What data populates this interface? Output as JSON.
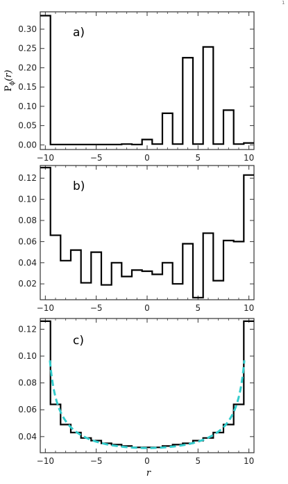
{
  "page_number": "1",
  "chart_data": [
    {
      "type": "step",
      "panel_label": "a)",
      "ylabel": "P",
      "ylabel_sub": "ϕ",
      "ylabel_arg": "(r)",
      "xlabel": "",
      "xlim": [
        -10.5,
        10.5
      ],
      "ylim": [
        -0.012,
        0.345
      ],
      "xticks": [
        -10,
        -5,
        0,
        5,
        10
      ],
      "xtick_labels": [
        "−10",
        "−5",
        "0",
        "5",
        "10"
      ],
      "yticks": [
        0.0,
        0.05,
        0.1,
        0.15,
        0.2,
        0.25,
        0.3
      ],
      "ytick_labels": [
        "0.00",
        "0.05",
        "0.10",
        "0.15",
        "0.20",
        "0.25",
        "0.30"
      ],
      "x": [
        -10,
        -9,
        -8,
        -7,
        -6,
        -5,
        -4,
        -3,
        -2,
        -1,
        0,
        1,
        2,
        3,
        4,
        5,
        6,
        7,
        8,
        9,
        10
      ],
      "values": [
        0.335,
        0.001,
        0.001,
        0.001,
        0.001,
        0.001,
        0.001,
        0.001,
        0.002,
        0.001,
        0.014,
        0.002,
        0.082,
        0.002,
        0.226,
        0.002,
        0.254,
        0.002,
        0.09,
        0.002,
        0.005
      ],
      "series_color": "#000000"
    },
    {
      "type": "step",
      "panel_label": "b)",
      "xlabel": "",
      "xlim": [
        -10.5,
        10.5
      ],
      "ylim": [
        0.005,
        0.132
      ],
      "xticks": [
        -10,
        -5,
        0,
        5,
        10
      ],
      "xtick_labels": [
        "−10",
        "−5",
        "0",
        "5",
        "10"
      ],
      "yticks": [
        0.02,
        0.04,
        0.06,
        0.08,
        0.1,
        0.12
      ],
      "ytick_labels": [
        "0.02",
        "0.04",
        "0.06",
        "0.08",
        "0.10",
        "0.12"
      ],
      "x": [
        -10,
        -9,
        -8,
        -7,
        -6,
        -5,
        -4,
        -3,
        -2,
        -1,
        0,
        1,
        2,
        3,
        4,
        5,
        6,
        7,
        8,
        9,
        10
      ],
      "values": [
        0.13,
        0.066,
        0.042,
        0.052,
        0.021,
        0.05,
        0.019,
        0.04,
        0.027,
        0.033,
        0.032,
        0.029,
        0.04,
        0.02,
        0.058,
        0.007,
        0.068,
        0.023,
        0.061,
        0.06,
        0.123
      ],
      "series_color": "#000000"
    },
    {
      "type": "step",
      "panel_label": "c)",
      "xlabel": "r",
      "xlim": [
        -10.5,
        10.5
      ],
      "ylim": [
        0.028,
        0.128
      ],
      "xticks": [
        -10,
        -5,
        0,
        5,
        10
      ],
      "xtick_labels": [
        "−10",
        "−5",
        "0",
        "5",
        "10"
      ],
      "yticks": [
        0.04,
        0.06,
        0.08,
        0.1,
        0.12
      ],
      "ytick_labels": [
        "0.04",
        "0.06",
        "0.08",
        "0.10",
        "0.12"
      ],
      "x": [
        -10,
        -9,
        -8,
        -7,
        -6,
        -5,
        -4,
        -3,
        -2,
        -1,
        0,
        1,
        2,
        3,
        4,
        5,
        6,
        7,
        8,
        9,
        10
      ],
      "values": [
        0.126,
        0.064,
        0.049,
        0.043,
        0.039,
        0.037,
        0.035,
        0.034,
        0.033,
        0.032,
        0.032,
        0.032,
        0.033,
        0.034,
        0.035,
        0.037,
        0.039,
        0.043,
        0.049,
        0.064,
        0.126
      ],
      "series_color": "#000000",
      "fit_curve": {
        "style": "dashed",
        "color": "#33cccc",
        "x_range": [
          -9.55,
          9.55
        ],
        "formula": "1/(pi*sqrt(10.1^2 - x^2))"
      }
    }
  ]
}
